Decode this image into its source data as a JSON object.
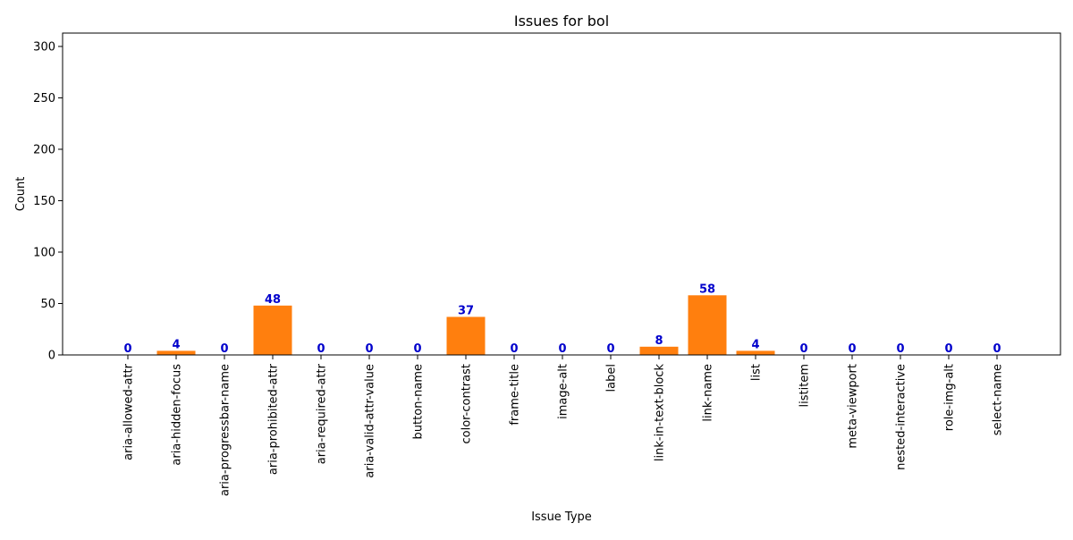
{
  "chart_data": {
    "type": "bar",
    "title": "Issues for bol",
    "xlabel": "Issue Type",
    "ylabel": "Count",
    "ylim": [
      0,
      313
    ],
    "yticks": [
      0,
      50,
      100,
      150,
      200,
      250,
      300
    ],
    "categories": [
      "aria-allowed-attr",
      "aria-hidden-focus",
      "aria-progressbar-name",
      "aria-prohibited-attr",
      "aria-required-attr",
      "aria-valid-attr-value",
      "button-name",
      "color-contrast",
      "frame-title",
      "image-alt",
      "label",
      "link-in-text-block",
      "link-name",
      "list",
      "listitem",
      "meta-viewport",
      "nested-interactive",
      "role-img-alt",
      "select-name"
    ],
    "values": [
      0,
      4,
      0,
      48,
      0,
      0,
      0,
      37,
      0,
      0,
      0,
      8,
      58,
      4,
      0,
      0,
      0,
      0,
      0
    ],
    "bar_color": "#ff7f0e",
    "label_color": "#0000cc",
    "grid": false,
    "legend": "none"
  }
}
